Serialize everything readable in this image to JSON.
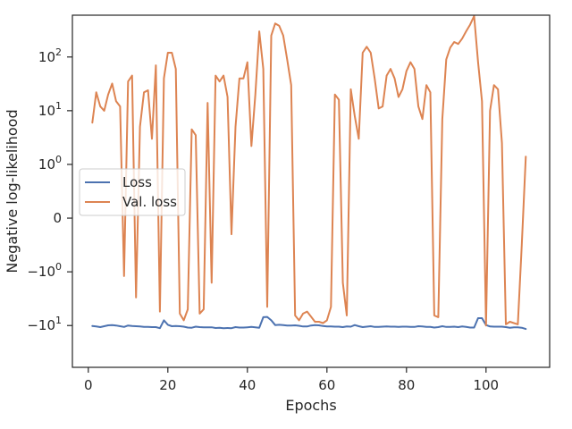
{
  "chart_data": {
    "type": "line",
    "xlabel": "Epochs",
    "ylabel": "Negative log-likelihood",
    "yscale": "symlog",
    "xlim": [
      -4,
      116
    ],
    "ylim": [
      -60,
      600
    ],
    "grid": false,
    "legend_position": "center-left",
    "x_ticks": [
      {
        "value": 0,
        "label": "0"
      },
      {
        "value": 20,
        "label": "20"
      },
      {
        "value": 40,
        "label": "40"
      },
      {
        "value": 60,
        "label": "60"
      },
      {
        "value": 80,
        "label": "80"
      },
      {
        "value": 100,
        "label": "100"
      }
    ],
    "y_ticks": [
      {
        "value": 100,
        "base": "10",
        "exp": "2"
      },
      {
        "value": 10,
        "base": "10",
        "exp": "1"
      },
      {
        "value": 1,
        "base": "10",
        "exp": "0"
      },
      {
        "value": 0,
        "base": "0",
        "exp": ""
      },
      {
        "value": -1,
        "base": "−10",
        "exp": "0"
      },
      {
        "value": -10,
        "base": "−10",
        "exp": "1"
      }
    ],
    "series": [
      {
        "name": "Loss",
        "color": "#4c72b0",
        "points": [
          [
            1,
            -10.2
          ],
          [
            2,
            -10.4
          ],
          [
            3,
            -10.7
          ],
          [
            4,
            -10.3
          ],
          [
            5,
            -9.9
          ],
          [
            6,
            -9.8
          ],
          [
            7,
            -10.0
          ],
          [
            8,
            -10.3
          ],
          [
            9,
            -10.6
          ],
          [
            10,
            -10.0
          ],
          [
            11,
            -10.2
          ],
          [
            12,
            -10.3
          ],
          [
            13,
            -10.4
          ],
          [
            14,
            -10.6
          ],
          [
            15,
            -10.6
          ],
          [
            16,
            -10.7
          ],
          [
            17,
            -10.7
          ],
          [
            18,
            -11.2
          ],
          [
            19,
            -8.0
          ],
          [
            20,
            -9.7
          ],
          [
            21,
            -10.3
          ],
          [
            22,
            -10.2
          ],
          [
            23,
            -10.3
          ],
          [
            24,
            -10.5
          ],
          [
            25,
            -10.9
          ],
          [
            26,
            -11.0
          ],
          [
            27,
            -10.5
          ],
          [
            28,
            -10.7
          ],
          [
            29,
            -10.8
          ],
          [
            30,
            -10.8
          ],
          [
            31,
            -10.8
          ],
          [
            32,
            -11.1
          ],
          [
            33,
            -11.0
          ],
          [
            34,
            -11.2
          ],
          [
            35,
            -11.1
          ],
          [
            36,
            -11.2
          ],
          [
            37,
            -10.7
          ],
          [
            38,
            -10.9
          ],
          [
            39,
            -10.9
          ],
          [
            40,
            -10.8
          ],
          [
            41,
            -10.6
          ],
          [
            42,
            -10.8
          ],
          [
            43,
            -11.0
          ],
          [
            44,
            -7.0
          ],
          [
            45,
            -6.9
          ],
          [
            46,
            -8.0
          ],
          [
            47,
            -9.8
          ],
          [
            48,
            -9.7
          ],
          [
            49,
            -9.8
          ],
          [
            50,
            -10.0
          ],
          [
            51,
            -10.0
          ],
          [
            52,
            -9.9
          ],
          [
            53,
            -10.1
          ],
          [
            54,
            -10.4
          ],
          [
            55,
            -10.4
          ],
          [
            56,
            -10.0
          ],
          [
            57,
            -9.8
          ],
          [
            58,
            -9.9
          ],
          [
            59,
            -10.2
          ],
          [
            60,
            -10.4
          ],
          [
            61,
            -10.4
          ],
          [
            62,
            -10.5
          ],
          [
            63,
            -10.5
          ],
          [
            64,
            -10.7
          ],
          [
            65,
            -10.4
          ],
          [
            66,
            -10.5
          ],
          [
            67,
            -9.8
          ],
          [
            68,
            -10.3
          ],
          [
            69,
            -10.7
          ],
          [
            70,
            -10.5
          ],
          [
            71,
            -10.3
          ],
          [
            72,
            -10.6
          ],
          [
            73,
            -10.6
          ],
          [
            74,
            -10.5
          ],
          [
            75,
            -10.4
          ],
          [
            76,
            -10.5
          ],
          [
            77,
            -10.5
          ],
          [
            78,
            -10.6
          ],
          [
            79,
            -10.5
          ],
          [
            80,
            -10.5
          ],
          [
            81,
            -10.6
          ],
          [
            82,
            -10.6
          ],
          [
            83,
            -10.3
          ],
          [
            84,
            -10.4
          ],
          [
            85,
            -10.6
          ],
          [
            86,
            -10.6
          ],
          [
            87,
            -10.9
          ],
          [
            88,
            -10.7
          ],
          [
            89,
            -10.3
          ],
          [
            90,
            -10.6
          ],
          [
            91,
            -10.6
          ],
          [
            92,
            -10.5
          ],
          [
            93,
            -10.7
          ],
          [
            94,
            -10.4
          ],
          [
            95,
            -10.6
          ],
          [
            96,
            -10.9
          ],
          [
            97,
            -10.9
          ],
          [
            98,
            -7.3
          ],
          [
            99,
            -7.3
          ],
          [
            100,
            -9.8
          ],
          [
            101,
            -10.4
          ],
          [
            102,
            -10.5
          ],
          [
            103,
            -10.5
          ],
          [
            104,
            -10.5
          ],
          [
            105,
            -10.7
          ],
          [
            106,
            -11.0
          ],
          [
            107,
            -10.8
          ],
          [
            108,
            -10.8
          ],
          [
            109,
            -11.0
          ],
          [
            110,
            -11.6
          ]
        ]
      },
      {
        "name": "Val. loss",
        "color": "#dd8452",
        "points": [
          [
            1,
            6
          ],
          [
            2,
            22
          ],
          [
            3,
            12
          ],
          [
            4,
            10
          ],
          [
            5,
            20
          ],
          [
            6,
            32
          ],
          [
            7,
            15
          ],
          [
            8,
            12
          ],
          [
            9,
            -1.2
          ],
          [
            10,
            35
          ],
          [
            11,
            45
          ],
          [
            12,
            -3
          ],
          [
            13,
            5
          ],
          [
            14,
            22
          ],
          [
            15,
            24
          ],
          [
            16,
            3
          ],
          [
            17,
            70
          ],
          [
            18,
            -5.5
          ],
          [
            19,
            40
          ],
          [
            20,
            120
          ],
          [
            21,
            120
          ],
          [
            22,
            60
          ],
          [
            23,
            -6
          ],
          [
            24,
            -8
          ],
          [
            25,
            -5
          ],
          [
            26,
            4.5
          ],
          [
            27,
            3.5
          ],
          [
            28,
            -6
          ],
          [
            29,
            -5
          ],
          [
            30,
            14
          ],
          [
            31,
            -1.6
          ],
          [
            32,
            45
          ],
          [
            33,
            35
          ],
          [
            34,
            45
          ],
          [
            35,
            18
          ],
          [
            36,
            -0.3
          ],
          [
            37,
            5
          ],
          [
            38,
            40
          ],
          [
            39,
            40
          ],
          [
            40,
            80
          ],
          [
            41,
            2.2
          ],
          [
            42,
            20
          ],
          [
            43,
            300
          ],
          [
            44,
            60
          ],
          [
            45,
            -4.5
          ],
          [
            46,
            250
          ],
          [
            47,
            420
          ],
          [
            48,
            380
          ],
          [
            49,
            250
          ],
          [
            50,
            90
          ],
          [
            51,
            30
          ],
          [
            52,
            -6.5
          ],
          [
            53,
            -8
          ],
          [
            54,
            -6
          ],
          [
            55,
            -5.5
          ],
          [
            56,
            -6.8
          ],
          [
            57,
            -8.5
          ],
          [
            58,
            -8.5
          ],
          [
            59,
            -9
          ],
          [
            60,
            -8
          ],
          [
            61,
            -4.5
          ],
          [
            62,
            20
          ],
          [
            63,
            16
          ],
          [
            64,
            -1.6
          ],
          [
            65,
            -6.5
          ],
          [
            66,
            25
          ],
          [
            67,
            8
          ],
          [
            68,
            3
          ],
          [
            69,
            120
          ],
          [
            70,
            155
          ],
          [
            71,
            120
          ],
          [
            72,
            40
          ],
          [
            73,
            11
          ],
          [
            74,
            12
          ],
          [
            75,
            45
          ],
          [
            76,
            60
          ],
          [
            77,
            40
          ],
          [
            78,
            18
          ],
          [
            79,
            25
          ],
          [
            80,
            55
          ],
          [
            81,
            80
          ],
          [
            82,
            60
          ],
          [
            83,
            12
          ],
          [
            84,
            7
          ],
          [
            85,
            30
          ],
          [
            86,
            22
          ],
          [
            87,
            -6.5
          ],
          [
            88,
            -7
          ],
          [
            89,
            7
          ],
          [
            90,
            90
          ],
          [
            91,
            150
          ],
          [
            92,
            190
          ],
          [
            93,
            175
          ],
          [
            94,
            220
          ],
          [
            95,
            300
          ],
          [
            96,
            400
          ],
          [
            97,
            580
          ],
          [
            98,
            80
          ],
          [
            99,
            15
          ],
          [
            100,
            -10
          ],
          [
            101,
            10
          ],
          [
            102,
            30
          ],
          [
            103,
            25
          ],
          [
            104,
            2.5
          ],
          [
            105,
            -9.5
          ],
          [
            106,
            -8.5
          ],
          [
            107,
            -9
          ],
          [
            108,
            -9.5
          ],
          [
            109,
            -0.5
          ],
          [
            110,
            1.4
          ]
        ]
      }
    ]
  }
}
